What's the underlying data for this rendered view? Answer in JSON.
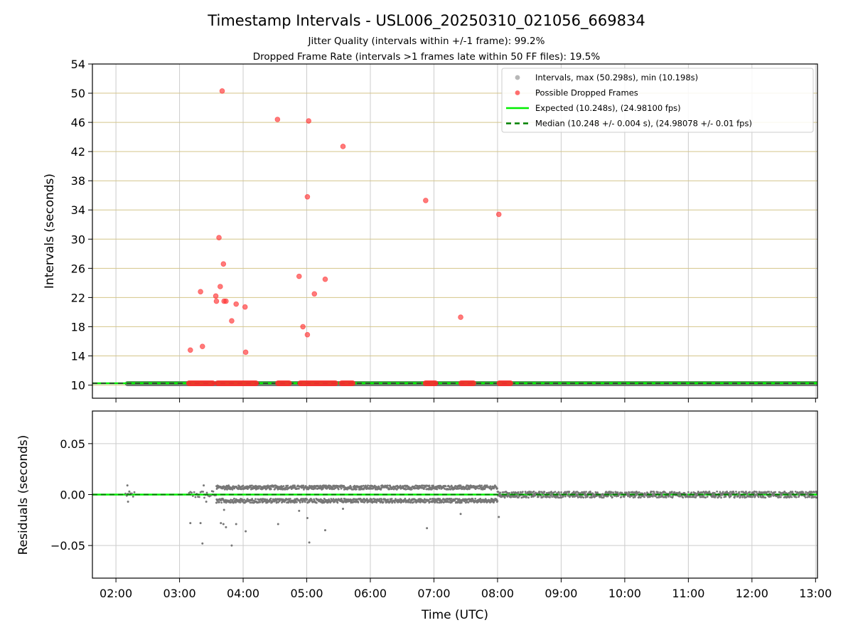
{
  "chart_data": {
    "title": "Timestamp Intervals - USL006_20250310_021056_669834",
    "subtitle_lines": [
      "Jitter Quality (intervals within +/-1 frame): 99.2%",
      "Dropped Frame Rate (intervals >1 frames late within 50 FF files): 19.5%"
    ],
    "x_axis": {
      "label": "Time (UTC)",
      "range_hours": [
        1.63,
        13.03
      ],
      "tick_hours": [
        2,
        3,
        4,
        5,
        6,
        7,
        8,
        9,
        10,
        11,
        12,
        13
      ],
      "tick_labels": [
        "02:00",
        "03:00",
        "04:00",
        "05:00",
        "06:00",
        "07:00",
        "08:00",
        "09:00",
        "10:00",
        "11:00",
        "12:00",
        "13:00"
      ]
    },
    "top": {
      "type": "scatter",
      "ylabel": "Intervals (seconds)",
      "ylim": [
        8.2,
        54
      ],
      "ytick_values": [
        10,
        14,
        18,
        22,
        26,
        30,
        34,
        38,
        42,
        46,
        50,
        54
      ],
      "ytick_labels": [
        "10",
        "14",
        "18",
        "22",
        "26",
        "30",
        "34",
        "38",
        "42",
        "46",
        "50",
        "54"
      ],
      "grid": true,
      "horizontal_grid_color": "#d4c58a",
      "legend_position": "top-right",
      "legend": [
        {
          "label": "Intervals, max (50.298s), min (10.198s)",
          "kind": "marker",
          "color": "#aaaaaa"
        },
        {
          "label": "Possible Dropped Frames",
          "kind": "marker",
          "color": "#ff5555"
        },
        {
          "label": "Expected (10.248s), (24.98100 fps)",
          "kind": "line",
          "color": "#00ee00"
        },
        {
          "label": "Median (10.248 +/- 0.004 s), (24.98078 +/- 0.01 fps)",
          "kind": "dashed",
          "color": "#008000"
        }
      ],
      "expected_value": 10.248,
      "median_value": 10.248,
      "intervals_range_hours": [
        2.18,
        13.03
      ],
      "dropped_frames_outliers": [
        {
          "x": 3.17,
          "y": 14.8
        },
        {
          "x": 3.33,
          "y": 22.8
        },
        {
          "x": 3.36,
          "y": 15.3
        },
        {
          "x": 3.57,
          "y": 22.2
        },
        {
          "x": 3.58,
          "y": 21.5
        },
        {
          "x": 3.62,
          "y": 30.2
        },
        {
          "x": 3.64,
          "y": 23.5
        },
        {
          "x": 3.67,
          "y": 50.3
        },
        {
          "x": 3.69,
          "y": 26.6
        },
        {
          "x": 3.7,
          "y": 21.5
        },
        {
          "x": 3.73,
          "y": 21.5
        },
        {
          "x": 3.82,
          "y": 18.8
        },
        {
          "x": 3.89,
          "y": 21.1
        },
        {
          "x": 4.03,
          "y": 20.7
        },
        {
          "x": 4.04,
          "y": 14.5
        },
        {
          "x": 4.54,
          "y": 46.4
        },
        {
          "x": 4.88,
          "y": 24.9
        },
        {
          "x": 4.94,
          "y": 18.0
        },
        {
          "x": 5.01,
          "y": 35.8
        },
        {
          "x": 5.01,
          "y": 16.9
        },
        {
          "x": 5.03,
          "y": 46.2
        },
        {
          "x": 5.12,
          "y": 22.5
        },
        {
          "x": 5.29,
          "y": 24.5
        },
        {
          "x": 5.57,
          "y": 42.7
        },
        {
          "x": 6.87,
          "y": 35.3
        },
        {
          "x": 7.42,
          "y": 19.3
        },
        {
          "x": 8.02,
          "y": 33.4
        }
      ],
      "dropped_frames_baseline_runs": [
        [
          3.15,
          3.52
        ],
        [
          3.6,
          4.2
        ],
        [
          4.55,
          4.72
        ],
        [
          4.9,
          5.45
        ],
        [
          5.55,
          5.72
        ],
        [
          6.87,
          7.02
        ],
        [
          7.43,
          7.62
        ],
        [
          8.03,
          8.2
        ]
      ]
    },
    "bottom": {
      "type": "scatter",
      "ylabel": "Residuals (seconds)",
      "ylim": [
        -0.082,
        0.082
      ],
      "ytick_values": [
        0.05,
        0.0,
        -0.05
      ],
      "ytick_labels": [
        "0.05",
        "0.00",
        "−0.05"
      ],
      "grid": true,
      "point_color": "#777777",
      "outliers": [
        {
          "x": 2.18,
          "y": 0.009
        },
        {
          "x": 2.19,
          "y": -0.007
        },
        {
          "x": 2.21,
          "y": 0.003
        },
        {
          "x": 3.17,
          "y": -0.028
        },
        {
          "x": 3.33,
          "y": -0.028
        },
        {
          "x": 3.36,
          "y": -0.048
        },
        {
          "x": 3.42,
          "y": -0.007
        },
        {
          "x": 3.38,
          "y": 0.009
        },
        {
          "x": 3.58,
          "y": -0.008
        },
        {
          "x": 3.62,
          "y": -0.005
        },
        {
          "x": 3.65,
          "y": -0.028
        },
        {
          "x": 3.69,
          "y": -0.029
        },
        {
          "x": 3.73,
          "y": -0.032
        },
        {
          "x": 3.7,
          "y": -0.015
        },
        {
          "x": 3.82,
          "y": -0.05
        },
        {
          "x": 3.89,
          "y": -0.029
        },
        {
          "x": 4.04,
          "y": -0.036
        },
        {
          "x": 4.55,
          "y": -0.029
        },
        {
          "x": 4.88,
          "y": -0.016
        },
        {
          "x": 5.01,
          "y": -0.023
        },
        {
          "x": 5.04,
          "y": -0.047
        },
        {
          "x": 5.29,
          "y": -0.035
        },
        {
          "x": 5.57,
          "y": -0.014
        },
        {
          "x": 6.89,
          "y": -0.033
        },
        {
          "x": 7.42,
          "y": -0.019
        },
        {
          "x": 8.02,
          "y": -0.022
        }
      ],
      "band_a": {
        "range_hours": [
          2.15,
          2.3
        ],
        "amplitude": 0.003
      },
      "band_b": {
        "range_hours": [
          3.15,
          3.58
        ],
        "amplitude": 0.004
      },
      "band_c": {
        "range_hours": [
          3.58,
          8.0
        ],
        "amplitude": 0.009
      },
      "band_d": {
        "range_hours": [
          8.0,
          13.03
        ],
        "amplitude": 0.003
      }
    }
  }
}
